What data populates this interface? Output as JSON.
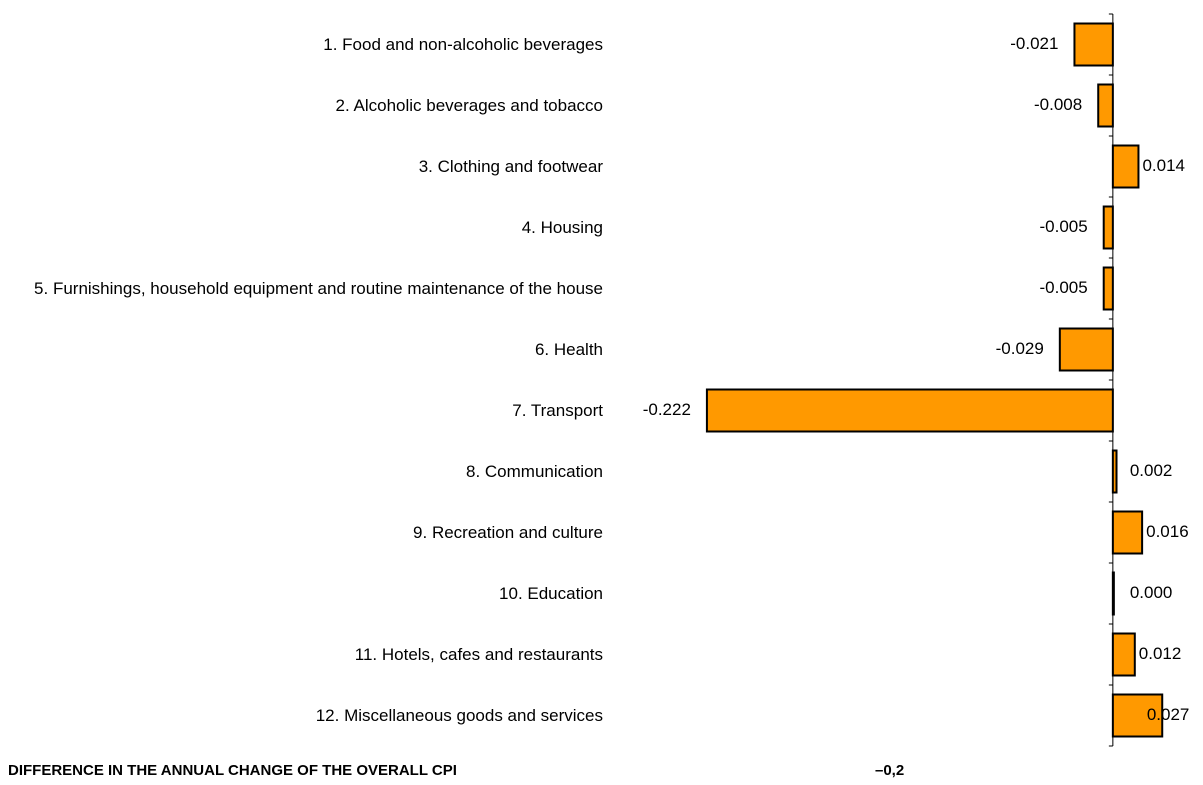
{
  "chart_data": {
    "type": "barh",
    "categories": [
      "1. Food and non-alcoholic beverages",
      "2. Alcoholic beverages and tobacco",
      "3. Clothing and footwear",
      "4. Housing",
      "5. Furnishings, household equipment and routine maintenance of the house",
      "6. Health",
      "7. Transport",
      "8. Communication",
      "9. Recreation and culture",
      "10. Education",
      "11. Hotels, cafes and restaurants",
      "12. Miscellaneous goods and services"
    ],
    "values": [
      -0.021,
      -0.008,
      0.014,
      -0.005,
      -0.005,
      -0.029,
      -0.222,
      0.002,
      0.016,
      0.0,
      0.012,
      0.027
    ],
    "value_labels": [
      "-0.021",
      "-0.008",
      "0.014",
      "-0.005",
      "-0.005",
      "-0.029",
      "-0.222",
      "0.002",
      "0.016",
      "0.000",
      "0.012",
      "0.027"
    ],
    "color": "#ff9900",
    "xlim": [
      -0.24,
      0.04
    ],
    "footer_label": "DIFFERENCE IN THE ANNUAL CHANGE OF THE OVERALL CPI",
    "footer_value": "–0,2"
  }
}
